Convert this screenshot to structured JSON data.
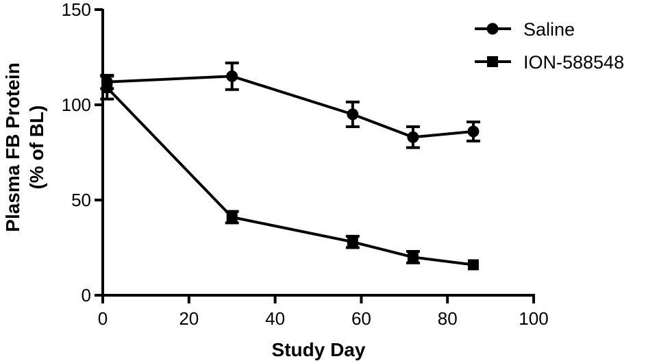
{
  "chart_data": {
    "type": "line",
    "xlabel": "Study Day",
    "ylabel_line1": "Plasma FB Protein",
    "ylabel_line2": "(% of BL)",
    "xlim": [
      0,
      100
    ],
    "ylim": [
      0,
      150
    ],
    "xticks": [
      0,
      20,
      40,
      60,
      80,
      100
    ],
    "yticks": [
      0,
      50,
      100,
      150
    ],
    "grid": false,
    "legend_position": "top-right",
    "series": [
      {
        "name": "Saline",
        "marker": "circle",
        "color": "#000000",
        "x": [
          1,
          30,
          58,
          72,
          86
        ],
        "y": [
          112,
          115,
          95,
          83,
          86
        ],
        "err": [
          3.5,
          7,
          6.5,
          5.5,
          5
        ]
      },
      {
        "name": "ION-588548",
        "marker": "square",
        "color": "#000000",
        "x": [
          1,
          30,
          58,
          72,
          86
        ],
        "y": [
          109,
          41,
          28,
          20,
          16
        ],
        "err": [
          6,
          3,
          3,
          3,
          0
        ]
      }
    ]
  }
}
